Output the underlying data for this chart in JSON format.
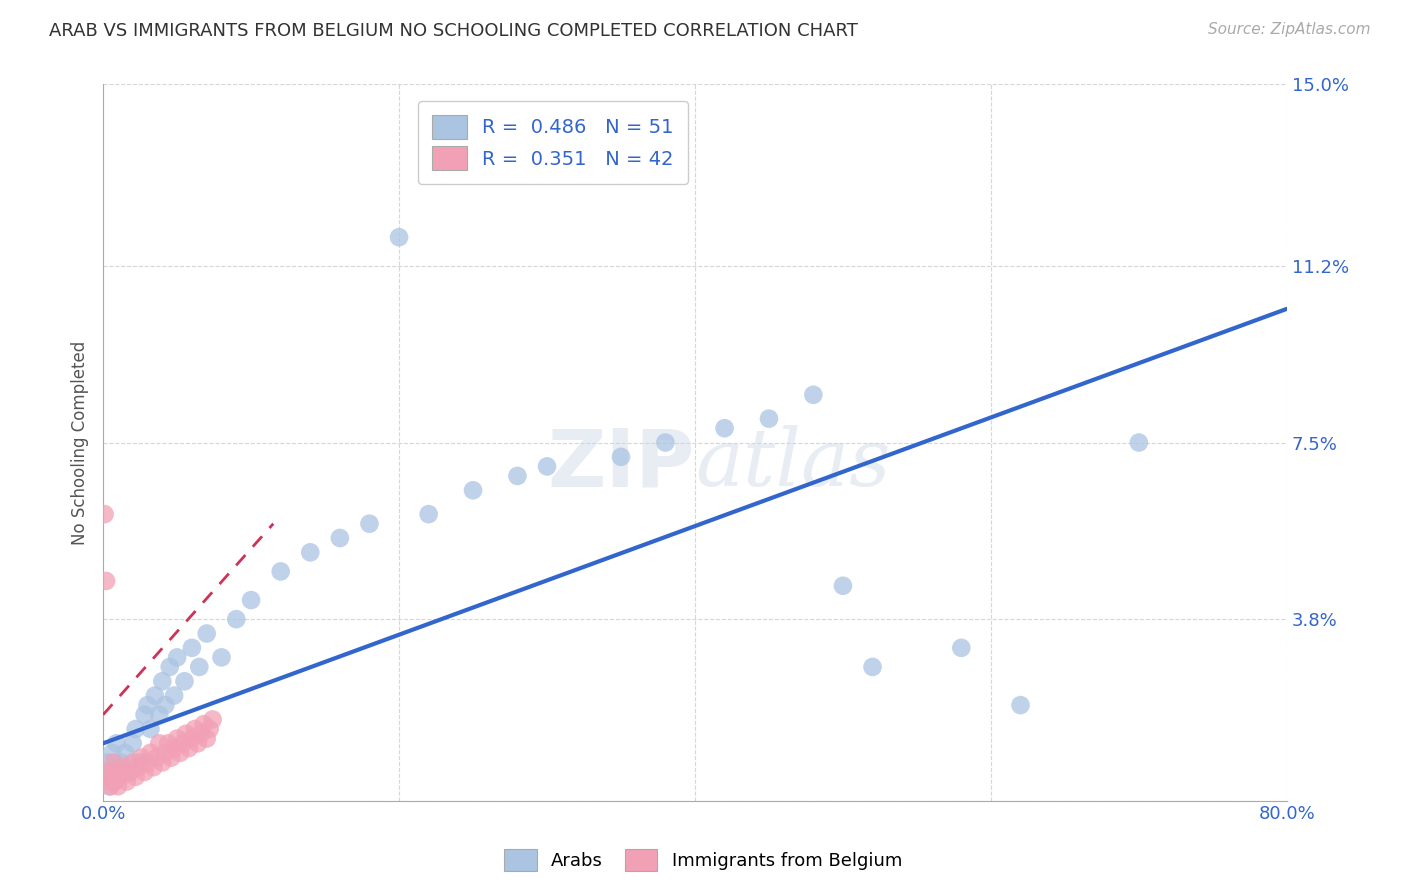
{
  "title": "ARAB VS IMMIGRANTS FROM BELGIUM NO SCHOOLING COMPLETED CORRELATION CHART",
  "source": "Source: ZipAtlas.com",
  "ylabel": "No Schooling Completed",
  "yticks": [
    0.0,
    0.038,
    0.075,
    0.112,
    0.15
  ],
  "ytick_labels": [
    "",
    "3.8%",
    "7.5%",
    "11.2%",
    "15.0%"
  ],
  "xlim": [
    0.0,
    0.8
  ],
  "ylim": [
    0.0,
    0.15
  ],
  "watermark": "ZIPatlas",
  "legend_blue_r": "R = 0.486",
  "legend_blue_n": "N = 51",
  "legend_pink_r": "R = 0.351",
  "legend_pink_n": "N = 42",
  "blue_color": "#aac4e2",
  "pink_color": "#f2a0b5",
  "blue_line_color": "#3366cc",
  "pink_line_color": "#cc3355",
  "blue_scatter": [
    [
      0.002,
      0.005
    ],
    [
      0.003,
      0.008
    ],
    [
      0.004,
      0.003
    ],
    [
      0.005,
      0.006
    ],
    [
      0.006,
      0.01
    ],
    [
      0.007,
      0.004
    ],
    [
      0.008,
      0.007
    ],
    [
      0.009,
      0.012
    ],
    [
      0.01,
      0.005
    ],
    [
      0.012,
      0.008
    ],
    [
      0.015,
      0.01
    ],
    [
      0.018,
      0.006
    ],
    [
      0.02,
      0.012
    ],
    [
      0.022,
      0.015
    ],
    [
      0.025,
      0.008
    ],
    [
      0.028,
      0.018
    ],
    [
      0.03,
      0.02
    ],
    [
      0.032,
      0.015
    ],
    [
      0.035,
      0.022
    ],
    [
      0.038,
      0.018
    ],
    [
      0.04,
      0.025
    ],
    [
      0.042,
      0.02
    ],
    [
      0.045,
      0.028
    ],
    [
      0.048,
      0.022
    ],
    [
      0.05,
      0.03
    ],
    [
      0.055,
      0.025
    ],
    [
      0.06,
      0.032
    ],
    [
      0.065,
      0.028
    ],
    [
      0.07,
      0.035
    ],
    [
      0.08,
      0.03
    ],
    [
      0.09,
      0.038
    ],
    [
      0.1,
      0.042
    ],
    [
      0.12,
      0.048
    ],
    [
      0.14,
      0.052
    ],
    [
      0.16,
      0.055
    ],
    [
      0.18,
      0.058
    ],
    [
      0.2,
      0.118
    ],
    [
      0.22,
      0.06
    ],
    [
      0.25,
      0.065
    ],
    [
      0.28,
      0.068
    ],
    [
      0.3,
      0.07
    ],
    [
      0.35,
      0.072
    ],
    [
      0.38,
      0.075
    ],
    [
      0.42,
      0.078
    ],
    [
      0.45,
      0.08
    ],
    [
      0.48,
      0.085
    ],
    [
      0.5,
      0.045
    ],
    [
      0.52,
      0.028
    ],
    [
      0.58,
      0.032
    ],
    [
      0.62,
      0.02
    ],
    [
      0.7,
      0.075
    ]
  ],
  "pink_scatter": [
    [
      0.001,
      0.06
    ],
    [
      0.002,
      0.046
    ],
    [
      0.003,
      0.004
    ],
    [
      0.004,
      0.006
    ],
    [
      0.005,
      0.003
    ],
    [
      0.006,
      0.005
    ],
    [
      0.007,
      0.008
    ],
    [
      0.008,
      0.004
    ],
    [
      0.009,
      0.006
    ],
    [
      0.01,
      0.003
    ],
    [
      0.012,
      0.005
    ],
    [
      0.014,
      0.007
    ],
    [
      0.016,
      0.004
    ],
    [
      0.018,
      0.006
    ],
    [
      0.02,
      0.008
    ],
    [
      0.022,
      0.005
    ],
    [
      0.024,
      0.007
    ],
    [
      0.026,
      0.009
    ],
    [
      0.028,
      0.006
    ],
    [
      0.03,
      0.008
    ],
    [
      0.032,
      0.01
    ],
    [
      0.034,
      0.007
    ],
    [
      0.036,
      0.009
    ],
    [
      0.038,
      0.012
    ],
    [
      0.04,
      0.008
    ],
    [
      0.042,
      0.01
    ],
    [
      0.044,
      0.012
    ],
    [
      0.046,
      0.009
    ],
    [
      0.048,
      0.011
    ],
    [
      0.05,
      0.013
    ],
    [
      0.052,
      0.01
    ],
    [
      0.054,
      0.012
    ],
    [
      0.056,
      0.014
    ],
    [
      0.058,
      0.011
    ],
    [
      0.06,
      0.013
    ],
    [
      0.062,
      0.015
    ],
    [
      0.064,
      0.012
    ],
    [
      0.066,
      0.014
    ],
    [
      0.068,
      0.016
    ],
    [
      0.07,
      0.013
    ],
    [
      0.072,
      0.015
    ],
    [
      0.074,
      0.017
    ]
  ],
  "blue_line_x": [
    0.0,
    0.8
  ],
  "blue_line_y": [
    0.012,
    0.103
  ],
  "pink_line_x": [
    0.0,
    0.115
  ],
  "pink_line_y": [
    0.018,
    0.058
  ]
}
